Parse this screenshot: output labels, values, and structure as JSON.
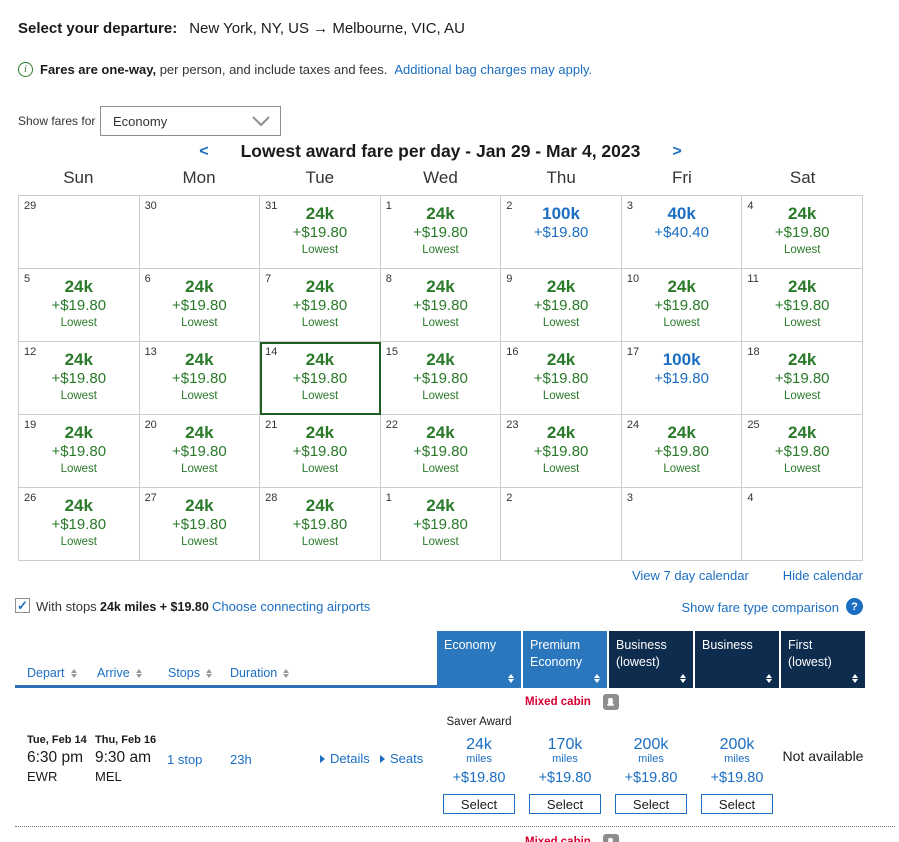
{
  "colors": {
    "link_blue": "#1b6ec2",
    "lowest_green": "#2a7a2a",
    "header_light_blue": "#2a77bd",
    "header_dark_navy": "#0d2c4e",
    "mixed_cabin_red": "#d50032",
    "selected_border_green": "#1e5e1e"
  },
  "header": {
    "label": "Select your departure:",
    "route": "New York, NY, US → Melbourne, VIC, AU"
  },
  "notice": {
    "bold": "Fares are one-way,",
    "rest": " per person, and include taxes and fees.",
    "link": "Additional bag charges may apply."
  },
  "fare_filter": {
    "label": "Show fares for",
    "value": "Economy"
  },
  "calendar": {
    "prev": "<",
    "next": ">",
    "title": "Lowest award fare per day - Jan 29 - Mar 4, 2023",
    "day_headers": [
      "Sun",
      "Mon",
      "Tue",
      "Wed",
      "Thu",
      "Fri",
      "Sat"
    ],
    "lowest_label": "Lowest",
    "view_link": "View 7 day calendar",
    "hide_link": "Hide calendar",
    "cells": [
      {
        "day": "29"
      },
      {
        "day": "30"
      },
      {
        "day": "31",
        "miles": "24k",
        "fee": "+$19.80",
        "tier": "lowest"
      },
      {
        "day": "1",
        "miles": "24k",
        "fee": "+$19.80",
        "tier": "lowest"
      },
      {
        "day": "2",
        "miles": "100k",
        "fee": "+$19.80",
        "tier": "standard"
      },
      {
        "day": "3",
        "miles": "40k",
        "fee": "+$40.40",
        "tier": "standard"
      },
      {
        "day": "4",
        "miles": "24k",
        "fee": "+$19.80",
        "tier": "lowest"
      },
      {
        "day": "5",
        "miles": "24k",
        "fee": "+$19.80",
        "tier": "lowest"
      },
      {
        "day": "6",
        "miles": "24k",
        "fee": "+$19.80",
        "tier": "lowest"
      },
      {
        "day": "7",
        "miles": "24k",
        "fee": "+$19.80",
        "tier": "lowest"
      },
      {
        "day": "8",
        "miles": "24k",
        "fee": "+$19.80",
        "tier": "lowest"
      },
      {
        "day": "9",
        "miles": "24k",
        "fee": "+$19.80",
        "tier": "lowest"
      },
      {
        "day": "10",
        "miles": "24k",
        "fee": "+$19.80",
        "tier": "lowest"
      },
      {
        "day": "11",
        "miles": "24k",
        "fee": "+$19.80",
        "tier": "lowest"
      },
      {
        "day": "12",
        "miles": "24k",
        "fee": "+$19.80",
        "tier": "lowest"
      },
      {
        "day": "13",
        "miles": "24k",
        "fee": "+$19.80",
        "tier": "lowest"
      },
      {
        "day": "14",
        "miles": "24k",
        "fee": "+$19.80",
        "tier": "lowest",
        "selected": true
      },
      {
        "day": "15",
        "miles": "24k",
        "fee": "+$19.80",
        "tier": "lowest"
      },
      {
        "day": "16",
        "miles": "24k",
        "fee": "+$19.80",
        "tier": "lowest"
      },
      {
        "day": "17",
        "miles": "100k",
        "fee": "+$19.80",
        "tier": "standard"
      },
      {
        "day": "18",
        "miles": "24k",
        "fee": "+$19.80",
        "tier": "lowest"
      },
      {
        "day": "19",
        "miles": "24k",
        "fee": "+$19.80",
        "tier": "lowest"
      },
      {
        "day": "20",
        "miles": "24k",
        "fee": "+$19.80",
        "tier": "lowest"
      },
      {
        "day": "21",
        "miles": "24k",
        "fee": "+$19.80",
        "tier": "lowest"
      },
      {
        "day": "22",
        "miles": "24k",
        "fee": "+$19.80",
        "tier": "lowest"
      },
      {
        "day": "23",
        "miles": "24k",
        "fee": "+$19.80",
        "tier": "lowest"
      },
      {
        "day": "24",
        "miles": "24k",
        "fee": "+$19.80",
        "tier": "lowest"
      },
      {
        "day": "25",
        "miles": "24k",
        "fee": "+$19.80",
        "tier": "lowest"
      },
      {
        "day": "26",
        "miles": "24k",
        "fee": "+$19.80",
        "tier": "lowest"
      },
      {
        "day": "27",
        "miles": "24k",
        "fee": "+$19.80",
        "tier": "lowest"
      },
      {
        "day": "28",
        "miles": "24k",
        "fee": "+$19.80",
        "tier": "lowest"
      },
      {
        "day": "1",
        "miles": "24k",
        "fee": "+$19.80",
        "tier": "lowest"
      },
      {
        "day": "2"
      },
      {
        "day": "3"
      },
      {
        "day": "4"
      }
    ]
  },
  "stops_bar": {
    "checkbox_label": "With stops",
    "price": "24k miles + $19.80",
    "link": "Choose connecting airports",
    "comparison": "Show fare type comparison"
  },
  "results": {
    "sort_columns": [
      "Depart",
      "Arrive",
      "Stops",
      "Duration"
    ],
    "fare_columns": [
      {
        "lines": [
          "Economy"
        ],
        "theme": "light"
      },
      {
        "lines": [
          "Premium",
          "Economy"
        ],
        "theme": "light"
      },
      {
        "lines": [
          "Business",
          "(lowest)"
        ],
        "theme": "dark"
      },
      {
        "lines": [
          "Business"
        ],
        "theme": "dark"
      },
      {
        "lines": [
          "First",
          "(lowest)"
        ],
        "theme": "dark"
      }
    ],
    "mixed_cabin": "Mixed cabin",
    "row": {
      "depart": {
        "date": "Tue, Feb 14",
        "time": "6:30 pm",
        "airport": "EWR"
      },
      "arrive": {
        "date": "Thu, Feb 16",
        "time": "9:30 am",
        "airport": "MEL"
      },
      "stops": "1 stop",
      "duration": "23h",
      "details": "Details",
      "seats": "Seats",
      "award_label": "Saver Award",
      "fares": [
        {
          "miles": "24k",
          "unit": "miles",
          "fee": "+$19.80",
          "button": "Select"
        },
        {
          "miles": "170k",
          "unit": "miles",
          "fee": "+$19.80",
          "button": "Select"
        },
        {
          "miles": "200k",
          "unit": "miles",
          "fee": "+$19.80",
          "button": "Select"
        },
        {
          "miles": "200k",
          "unit": "miles",
          "fee": "+$19.80",
          "button": "Select"
        },
        {
          "na": "Not available"
        }
      ]
    }
  }
}
